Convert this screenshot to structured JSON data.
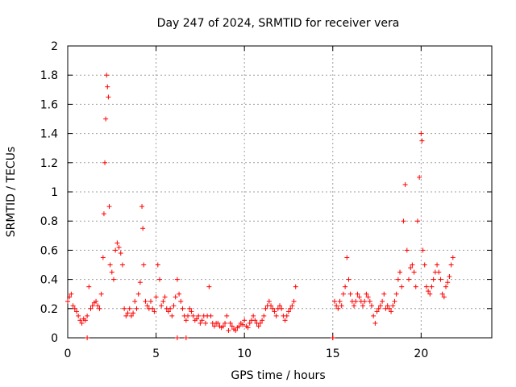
{
  "chart_data": {
    "type": "scatter",
    "title": "Day 247 of 2024, SRMTID for receiver vera",
    "xlabel": "GPS time / hours",
    "ylabel": "SRMTID / TECUs",
    "xlim": [
      0,
      24
    ],
    "ylim": [
      0,
      2
    ],
    "x_ticks": [
      0,
      5,
      10,
      15,
      20
    ],
    "x_tick_labels": [
      "0",
      "5",
      "10",
      "15",
      "20"
    ],
    "y_ticks": [
      0,
      0.2,
      0.4,
      0.6,
      0.8,
      1,
      1.2,
      1.4,
      1.6,
      1.8,
      2
    ],
    "y_tick_labels": [
      "0",
      "0.2",
      "0.4",
      "0.6",
      "0.8",
      "1",
      "1.2",
      "1.4",
      "1.6",
      "1.8",
      "2"
    ],
    "grid": true,
    "marker": "+",
    "color": "#ff0000",
    "series": [
      {
        "name": "SRMTID",
        "x": [
          0.0,
          0.1,
          0.2,
          0.3,
          0.4,
          0.5,
          0.6,
          0.7,
          0.8,
          0.9,
          1.0,
          1.1,
          1.2,
          1.3,
          1.4,
          1.5,
          1.6,
          1.7,
          1.8,
          1.9,
          2.0,
          2.05,
          2.1,
          2.15,
          2.2,
          2.25,
          2.3,
          2.35,
          2.4,
          2.5,
          2.6,
          2.7,
          2.8,
          2.9,
          3.0,
          3.1,
          3.2,
          3.3,
          3.4,
          3.5,
          3.6,
          3.7,
          3.8,
          3.9,
          4.0,
          4.1,
          4.2,
          4.25,
          4.3,
          4.4,
          4.5,
          4.6,
          4.7,
          4.8,
          4.9,
          5.0,
          5.1,
          5.2,
          5.3,
          5.4,
          5.5,
          5.6,
          5.7,
          5.8,
          5.9,
          6.0,
          6.1,
          6.2,
          6.3,
          6.4,
          6.5,
          6.6,
          6.7,
          6.8,
          6.9,
          7.0,
          7.1,
          7.2,
          7.3,
          7.4,
          7.5,
          7.6,
          7.7,
          7.8,
          7.9,
          8.0,
          8.1,
          8.2,
          8.3,
          8.4,
          8.5,
          8.6,
          8.7,
          8.8,
          8.9,
          9.0,
          9.1,
          9.2,
          9.3,
          9.4,
          9.5,
          9.6,
          9.7,
          9.8,
          9.9,
          10.0,
          10.1,
          10.2,
          10.3,
          10.4,
          10.5,
          10.6,
          10.7,
          10.8,
          10.9,
          11.0,
          11.1,
          11.2,
          11.3,
          11.4,
          11.5,
          11.6,
          11.7,
          11.8,
          11.9,
          12.0,
          12.1,
          12.2,
          12.3,
          12.4,
          12.5,
          12.6,
          12.7,
          12.8,
          12.9,
          15.0,
          15.1,
          15.2,
          15.3,
          15.4,
          15.5,
          15.6,
          15.7,
          15.8,
          15.9,
          16.0,
          16.1,
          16.2,
          16.3,
          16.4,
          16.5,
          16.6,
          16.7,
          16.8,
          16.9,
          17.0,
          17.1,
          17.2,
          17.3,
          17.4,
          17.5,
          17.6,
          17.7,
          17.8,
          17.9,
          18.0,
          18.1,
          18.2,
          18.3,
          18.4,
          18.5,
          18.6,
          18.7,
          18.8,
          18.9,
          19.0,
          19.1,
          19.2,
          19.3,
          19.4,
          19.5,
          19.6,
          19.7,
          19.8,
          19.9,
          20.0,
          20.05,
          20.1,
          20.2,
          20.3,
          20.4,
          20.5,
          20.6,
          20.7,
          20.8,
          20.9,
          21.0,
          21.1,
          21.2,
          21.3,
          21.4,
          21.5,
          21.6,
          21.7,
          21.8,
          1.1,
          6.2,
          6.7,
          15.0
        ],
        "y": [
          0.25,
          0.28,
          0.3,
          0.22,
          0.2,
          0.18,
          0.15,
          0.12,
          0.1,
          0.13,
          0.12,
          0.15,
          0.35,
          0.2,
          0.22,
          0.24,
          0.25,
          0.22,
          0.2,
          0.3,
          0.55,
          0.85,
          1.2,
          1.5,
          1.8,
          1.72,
          1.65,
          0.9,
          0.5,
          0.45,
          0.4,
          0.6,
          0.65,
          0.62,
          0.58,
          0.5,
          0.2,
          0.15,
          0.17,
          0.2,
          0.15,
          0.17,
          0.25,
          0.2,
          0.3,
          0.38,
          0.9,
          0.75,
          0.5,
          0.25,
          0.22,
          0.2,
          0.25,
          0.2,
          0.18,
          0.28,
          0.5,
          0.4,
          0.22,
          0.25,
          0.28,
          0.2,
          0.18,
          0.2,
          0.15,
          0.22,
          0.28,
          0.4,
          0.3,
          0.25,
          0.2,
          0.15,
          0.12,
          0.15,
          0.2,
          0.18,
          0.15,
          0.12,
          0.13,
          0.15,
          0.1,
          0.12,
          0.15,
          0.1,
          0.15,
          0.35,
          0.15,
          0.1,
          0.08,
          0.1,
          0.1,
          0.08,
          0.07,
          0.08,
          0.1,
          0.15,
          0.05,
          0.1,
          0.08,
          0.06,
          0.05,
          0.07,
          0.08,
          0.1,
          0.09,
          0.12,
          0.08,
          0.07,
          0.1,
          0.12,
          0.15,
          0.12,
          0.1,
          0.08,
          0.1,
          0.12,
          0.15,
          0.2,
          0.22,
          0.25,
          0.22,
          0.2,
          0.18,
          0.15,
          0.2,
          0.22,
          0.2,
          0.15,
          0.12,
          0.15,
          0.18,
          0.2,
          0.22,
          0.25,
          0.35,
          0.0,
          0.25,
          0.22,
          0.2,
          0.25,
          0.22,
          0.3,
          0.35,
          0.55,
          0.4,
          0.3,
          0.25,
          0.22,
          0.25,
          0.3,
          0.28,
          0.25,
          0.22,
          0.25,
          0.3,
          0.28,
          0.25,
          0.22,
          0.15,
          0.1,
          0.18,
          0.2,
          0.22,
          0.25,
          0.3,
          0.2,
          0.22,
          0.2,
          0.18,
          0.22,
          0.25,
          0.3,
          0.4,
          0.45,
          0.35,
          0.8,
          1.05,
          0.6,
          0.4,
          0.48,
          0.5,
          0.45,
          0.35,
          0.8,
          1.1,
          1.4,
          1.35,
          0.6,
          0.5,
          0.35,
          0.32,
          0.3,
          0.35,
          0.4,
          0.45,
          0.5,
          0.45,
          0.4,
          0.3,
          0.28,
          0.35,
          0.38,
          0.42,
          0.5,
          0.55,
          0.0,
          0.0,
          0.0,
          0.0
        ]
      }
    ]
  }
}
